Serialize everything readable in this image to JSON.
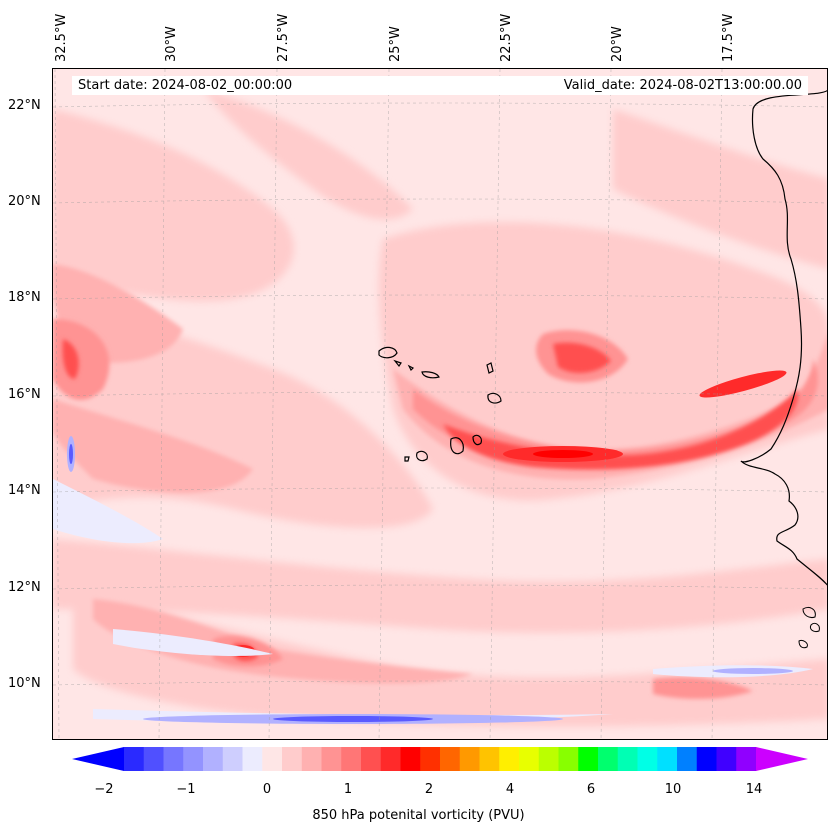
{
  "map": {
    "start_date": "Start date: 2024-08-02_00:00:00",
    "valid_date": "Valid_date: 2024-08-02T13:00:00.00",
    "lon_labels": [
      "32.5°W",
      "30°W",
      "27.5°W",
      "25°W",
      "22.5°W",
      "20°W",
      "17.5°W"
    ],
    "lat_labels": [
      "22°N",
      "20°N",
      "18°N",
      "16°N",
      "14°N",
      "12°N",
      "10°N"
    ],
    "colors": {
      "weak_positive": "#ffe6e6",
      "strong_positive": "#ff0000",
      "negative": "#5a5aff",
      "coastline": "#000000"
    }
  },
  "colorbar": {
    "label": "850 hPa potenital vorticity (PVU)",
    "ticks": [
      "−2",
      "−1",
      "0",
      "1",
      "2",
      "4",
      "6",
      "10",
      "14"
    ],
    "colors": [
      "#0000ff",
      "#2a2aff",
      "#5050ff",
      "#7676ff",
      "#9393ff",
      "#b1b1ff",
      "#cecefe",
      "#ececfe",
      "#fee6e6",
      "#ffcccc",
      "#ffb1b1",
      "#ff9393",
      "#ff7676",
      "#ff5050",
      "#ff2a2a",
      "#ff0000",
      "#ff3000",
      "#ff6600",
      "#ff9900",
      "#ffc300",
      "#ffef00",
      "#e8ff00",
      "#bbff00",
      "#88ff00",
      "#00ff00",
      "#00ff6e",
      "#00ffb4",
      "#00ffe6",
      "#00e0ff",
      "#0080ff",
      "#0000ff",
      "#4000ff",
      "#9000ff",
      "#cc00ff"
    ]
  }
}
